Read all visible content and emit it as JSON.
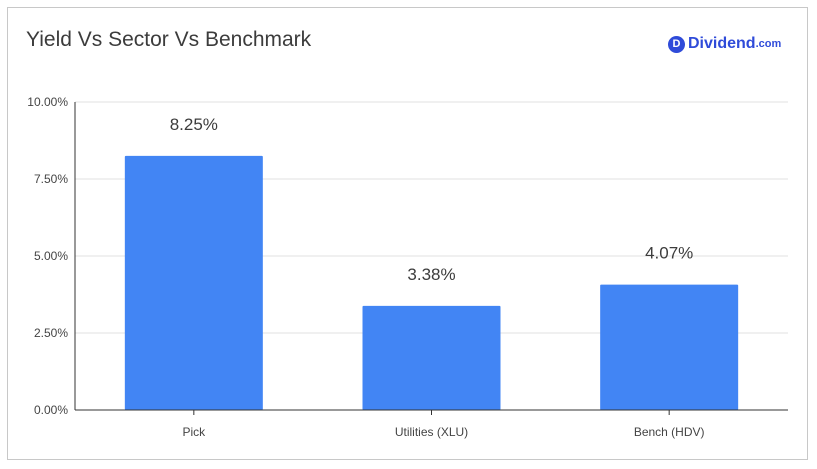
{
  "brand": {
    "logo_letter": "D",
    "name": "Dividend",
    "suffix": ".com",
    "color": "#2f4bd9"
  },
  "chart_data": {
    "type": "bar",
    "title": "Yield Vs Sector Vs Benchmark",
    "categories": [
      "Pick",
      "Utilities (XLU)",
      "Bench (HDV)"
    ],
    "values": [
      8.25,
      3.38,
      4.07
    ],
    "data_labels": [
      "8.25%",
      "3.38%",
      "4.07%"
    ],
    "ylim": [
      0,
      10
    ],
    "yticks": [
      0,
      2.5,
      5,
      7.5,
      10
    ],
    "ytick_labels": [
      "0.00%",
      "2.50%",
      "5.00%",
      "7.50%",
      "10.00%"
    ],
    "xlabel": "",
    "ylabel": "",
    "bar_color": "#4285f4",
    "grid": true,
    "legend": "none"
  }
}
